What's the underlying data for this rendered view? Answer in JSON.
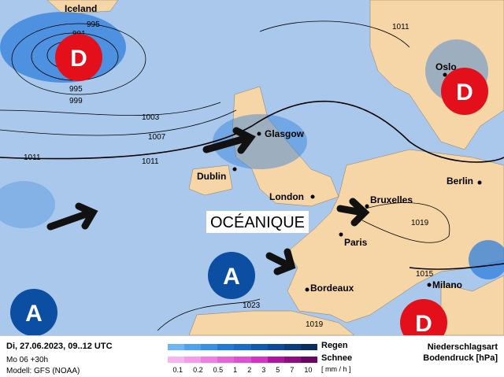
{
  "map": {
    "regime_label": "OCÉANIQUE",
    "cities": [
      "Iceland",
      "Glasgow",
      "Dublin",
      "London",
      "Bruxelles",
      "Paris",
      "Bordeaux",
      "Berlin",
      "Oslo",
      "Milano"
    ],
    "isobars": [
      "995",
      "991",
      "995",
      "999",
      "1003",
      "1007",
      "1011",
      "1011",
      "1011",
      "1019",
      "1015",
      "1023",
      "1019"
    ],
    "low_symbol": "D",
    "high_symbol": "A",
    "colors": {
      "sea": "#a9c8ec",
      "land": "#f6d6a6",
      "low": "#e3101c",
      "high": "#0b4ea2",
      "rain": "#2f7fdc"
    }
  },
  "footer": {
    "date": "Di, 27.06.2023, 09..12 UTC",
    "run": "Mo 06 +30h",
    "model": "Modell: GFS (NOAA)",
    "rain_label": "Regen",
    "snow_label": "Schnee",
    "scale": [
      "0.1",
      "0.2",
      "0.5",
      "1",
      "2",
      "3",
      "5",
      "7",
      "10"
    ],
    "unit": "[ mm / h ]",
    "type_title": "Niederschlagsart",
    "pressure_title": "Bodendruck [hPa]",
    "rain_colors": [
      "#6fb5f5",
      "#4fa2ef",
      "#3790e6",
      "#2379d8",
      "#1b6bc9",
      "#1059b0",
      "#0b4b9a",
      "#0a3d80",
      "#0a2d5e"
    ],
    "snow_colors": [
      "#f8b4f0",
      "#f59be9",
      "#ef7de3",
      "#e765db",
      "#df4fd4",
      "#d632c8",
      "#b0139f",
      "#8f0c83",
      "#6a0563"
    ]
  }
}
